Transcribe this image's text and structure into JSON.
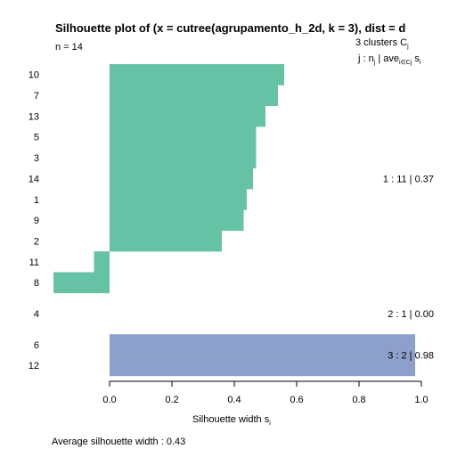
{
  "chart_data": {
    "type": "bar",
    "orientation": "horizontal",
    "title": "Silhouette plot of (x = cutree(agrupamento_h_2d, k = 3), dist = d",
    "n_label": "n = 14",
    "legend_header": "3  clusters  C",
    "legend_header_sub": "j",
    "legend_subheader": "j :  n",
    "legend_subheader_sub": "j",
    "legend_subheader_mid": " | ave",
    "legend_subheader_mid_sub": "i∈Cj",
    "legend_subheader_end": "  s",
    "legend_subheader_end_sub": "i",
    "xlabel": "Silhouette width s",
    "xlabel_sub": "i",
    "xlim": [
      0,
      1
    ],
    "x_ticks": [
      "0.0",
      "0.2",
      "0.4",
      "0.6",
      "0.8",
      "1.0"
    ],
    "footer": "Average silhouette width :  0.43",
    "clusters": [
      {
        "summary": "1 :   11  |  0.37",
        "color": "#66c2a5",
        "items": [
          {
            "label": "10",
            "value": 0.56
          },
          {
            "label": "7",
            "value": 0.54
          },
          {
            "label": "13",
            "value": 0.5
          },
          {
            "label": "5",
            "value": 0.47
          },
          {
            "label": "3",
            "value": 0.47
          },
          {
            "label": "14",
            "value": 0.46
          },
          {
            "label": "1",
            "value": 0.44
          },
          {
            "label": "9",
            "value": 0.43
          },
          {
            "label": "2",
            "value": 0.36
          },
          {
            "label": "11",
            "value": -0.05
          },
          {
            "label": "8",
            "value": -0.18
          }
        ]
      },
      {
        "summary": "2 :   1  |  0.00",
        "color": "#fc8d62",
        "items": [
          {
            "label": "4",
            "value": 0.0
          }
        ]
      },
      {
        "summary": "3 :   2  |  0.98",
        "color": "#8da0cb",
        "items": [
          {
            "label": "6",
            "value": 0.98
          },
          {
            "label": "12",
            "value": 0.98
          }
        ]
      }
    ]
  }
}
